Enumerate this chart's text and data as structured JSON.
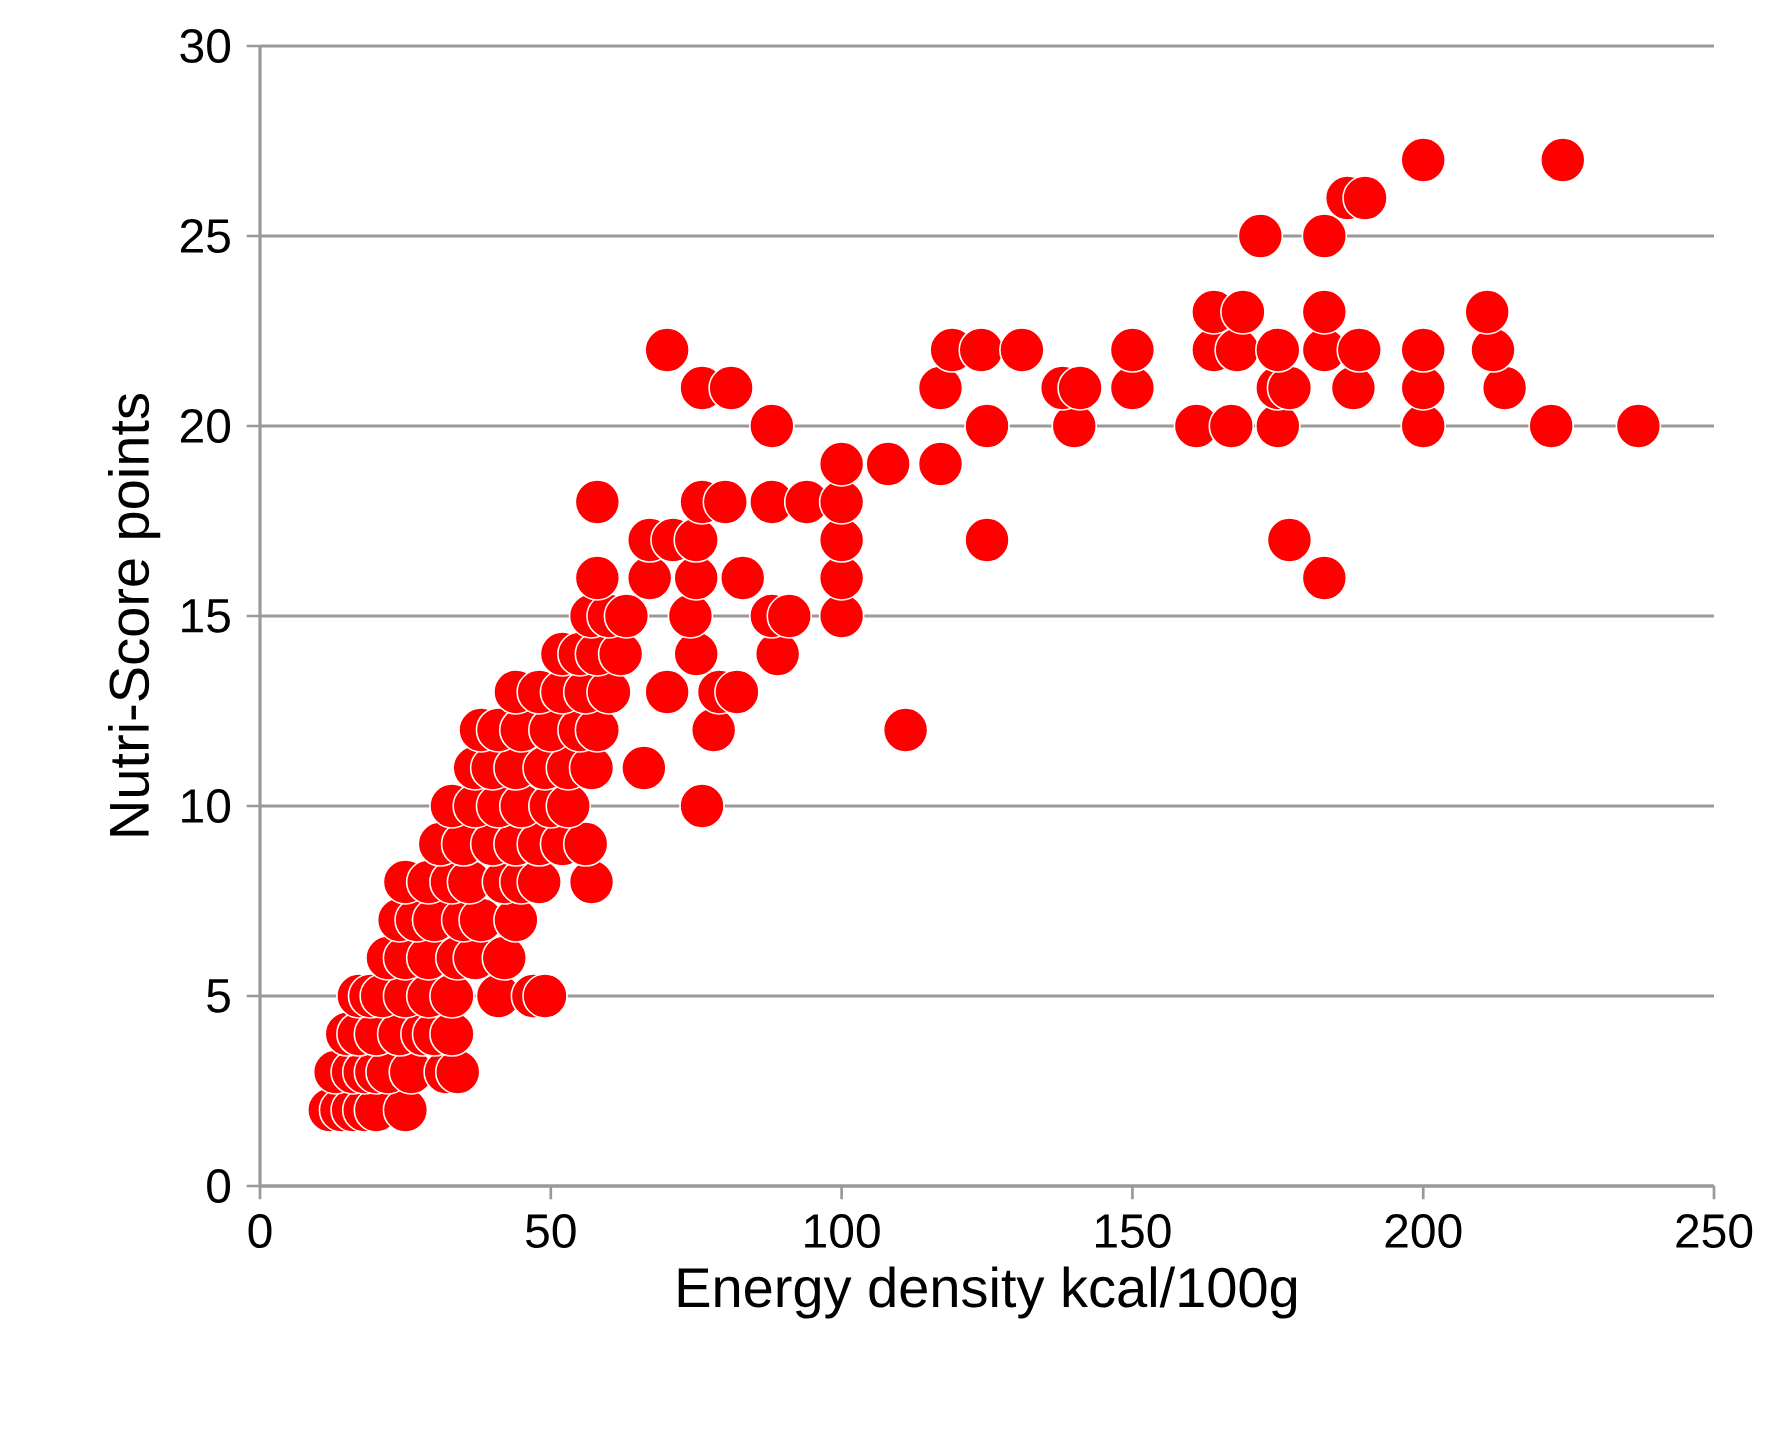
{
  "chart_data": {
    "type": "scatter",
    "xlabel": "Energy density kcal/100g",
    "ylabel": "Nutri-Score points",
    "xlim": [
      0,
      250
    ],
    "xticks": [
      0,
      50,
      100,
      150,
      200,
      250
    ],
    "ylim": [
      0,
      30
    ],
    "yticks": [
      0,
      5,
      10,
      15,
      20,
      25,
      30
    ],
    "grid": "y",
    "marker": "circle",
    "series": [
      {
        "color": "#ff0000",
        "x": [
          12,
          14,
          16,
          18,
          20,
          25,
          13,
          16,
          18,
          20,
          22,
          26,
          32,
          34,
          15,
          17,
          20,
          24,
          28,
          30,
          33,
          17,
          19,
          21,
          25,
          29,
          33,
          41,
          47,
          49,
          22,
          25,
          29,
          34,
          37,
          42,
          24,
          27,
          30,
          35,
          38,
          44,
          25,
          29,
          33,
          36,
          42,
          45,
          48,
          57,
          31,
          35,
          40,
          44,
          48,
          52,
          56,
          33,
          37,
          41,
          45,
          50,
          53,
          76,
          37,
          40,
          44,
          49,
          53,
          57,
          66,
          38,
          41,
          45,
          50,
          55,
          58,
          78,
          111,
          44,
          48,
          52,
          56,
          60,
          70,
          79,
          82,
          52,
          55,
          58,
          62,
          75,
          89,
          57,
          60,
          63,
          74,
          88,
          91,
          100,
          58,
          67,
          75,
          83,
          100,
          183,
          67,
          71,
          75,
          100,
          125,
          177,
          58,
          76,
          80,
          88,
          94,
          100,
          100,
          108,
          117,
          88,
          125,
          140,
          161,
          167,
          175,
          200,
          222,
          237,
          76,
          81,
          117,
          138,
          141,
          150,
          175,
          177,
          188,
          200,
          214,
          70,
          119,
          124,
          131,
          150,
          164,
          168,
          175,
          183,
          189,
          200,
          212,
          164,
          169,
          183,
          211,
          172,
          183,
          187,
          190,
          200,
          224
        ],
        "values": [
          2,
          2,
          2,
          2,
          2,
          2,
          3,
          3,
          3,
          3,
          3,
          3,
          3,
          3,
          4,
          4,
          4,
          4,
          4,
          4,
          4,
          5,
          5,
          5,
          5,
          5,
          5,
          5,
          5,
          5,
          6,
          6,
          6,
          6,
          6,
          6,
          7,
          7,
          7,
          7,
          7,
          7,
          8,
          8,
          8,
          8,
          8,
          8,
          8,
          8,
          9,
          9,
          9,
          9,
          9,
          9,
          9,
          10,
          10,
          10,
          10,
          10,
          10,
          10,
          11,
          11,
          11,
          11,
          11,
          11,
          11,
          12,
          12,
          12,
          12,
          12,
          12,
          12,
          12,
          13,
          13,
          13,
          13,
          13,
          13,
          13,
          13,
          14,
          14,
          14,
          14,
          14,
          14,
          15,
          15,
          15,
          15,
          15,
          15,
          15,
          16,
          16,
          16,
          16,
          16,
          16,
          17,
          17,
          17,
          17,
          17,
          17,
          18,
          18,
          18,
          18,
          18,
          18,
          19,
          19,
          19,
          20,
          20,
          20,
          20,
          20,
          20,
          20,
          20,
          20,
          21,
          21,
          21,
          21,
          21,
          21,
          21,
          21,
          21,
          21,
          21,
          22,
          22,
          22,
          22,
          22,
          22,
          22,
          22,
          22,
          22,
          22,
          22,
          23,
          23,
          23,
          23,
          25,
          25,
          26,
          26,
          27,
          27
        ]
      }
    ]
  }
}
